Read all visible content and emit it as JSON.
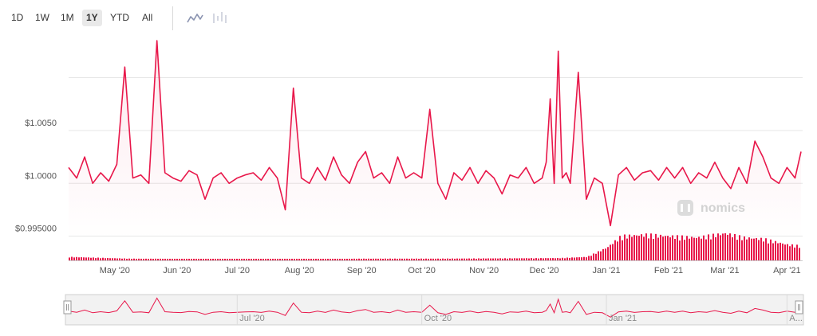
{
  "toolbar": {
    "ranges": [
      "1D",
      "1W",
      "1M",
      "1Y",
      "YTD",
      "All"
    ],
    "active_range": "1Y",
    "chart_types": [
      "line-chart-icon",
      "candlestick-icon"
    ]
  },
  "watermark": "nomics",
  "colors": {
    "line": "#e8174a",
    "fill": "#fde7ec",
    "grid": "#e6e6e6",
    "axis_text": "#555555",
    "navigator_bg": "#f2f2f2"
  },
  "navigator": {
    "labels": [
      "Jul '20",
      "Oct '20",
      "Jan '21",
      "A..."
    ]
  },
  "chart_data": {
    "type": "line",
    "title": "",
    "xlabel": "",
    "ylabel": "",
    "yticks": [
      {
        "value": 0.995,
        "label": "$0.995000"
      },
      {
        "value": 1.0,
        "label": "$1.0000"
      },
      {
        "value": 1.005,
        "label": "$1.0050"
      }
    ],
    "xticks": [
      {
        "x": "2020-05-01",
        "label": "May '20"
      },
      {
        "x": "2020-06-01",
        "label": "Jun '20"
      },
      {
        "x": "2020-07-01",
        "label": "Jul '20"
      },
      {
        "x": "2020-08-01",
        "label": "Aug '20"
      },
      {
        "x": "2020-09-01",
        "label": "Sep '20"
      },
      {
        "x": "2020-10-01",
        "label": "Oct '20"
      },
      {
        "x": "2020-11-01",
        "label": "Nov '20"
      },
      {
        "x": "2020-12-01",
        "label": "Dec '20"
      },
      {
        "x": "2021-01-01",
        "label": "Jan '21"
      },
      {
        "x": "2021-02-01",
        "label": "Feb '21"
      },
      {
        "x": "2021-03-01",
        "label": "Mar '21"
      },
      {
        "x": "2021-04-01",
        "label": "Apr '21"
      }
    ],
    "xlim": [
      "2020-04-08",
      "2021-04-08"
    ],
    "ylim": [
      0.99475,
      1.0138
    ],
    "series": [
      {
        "x": [
          "2020-04-08",
          "2020-04-12",
          "2020-04-16",
          "2020-04-20",
          "2020-04-24",
          "2020-04-28",
          "2020-05-02",
          "2020-05-06",
          "2020-05-10",
          "2020-05-14",
          "2020-05-18",
          "2020-05-22",
          "2020-05-26",
          "2020-05-30",
          "2020-06-03",
          "2020-06-07",
          "2020-06-11",
          "2020-06-15",
          "2020-06-19",
          "2020-06-23",
          "2020-06-27",
          "2020-07-01",
          "2020-07-05",
          "2020-07-09",
          "2020-07-13",
          "2020-07-17",
          "2020-07-21",
          "2020-07-25",
          "2020-07-29",
          "2020-08-02",
          "2020-08-06",
          "2020-08-10",
          "2020-08-14",
          "2020-08-18",
          "2020-08-22",
          "2020-08-26",
          "2020-08-30",
          "2020-09-03",
          "2020-09-07",
          "2020-09-11",
          "2020-09-15",
          "2020-09-19",
          "2020-09-23",
          "2020-09-27",
          "2020-10-01",
          "2020-10-05",
          "2020-10-09",
          "2020-10-13",
          "2020-10-17",
          "2020-10-21",
          "2020-10-25",
          "2020-10-29",
          "2020-11-02",
          "2020-11-06",
          "2020-11-10",
          "2020-11-14",
          "2020-11-18",
          "2020-11-22",
          "2020-11-26",
          "2020-11-30",
          "2020-12-02",
          "2020-12-04",
          "2020-12-06",
          "2020-12-08",
          "2020-12-10",
          "2020-12-12",
          "2020-12-14",
          "2020-12-18",
          "2020-12-22",
          "2020-12-26",
          "2020-12-30",
          "2021-01-03",
          "2021-01-07",
          "2021-01-11",
          "2021-01-15",
          "2021-01-19",
          "2021-01-23",
          "2021-01-27",
          "2021-01-31",
          "2021-02-04",
          "2021-02-08",
          "2021-02-12",
          "2021-02-16",
          "2021-02-20",
          "2021-02-24",
          "2021-02-28",
          "2021-03-04",
          "2021-03-08",
          "2021-03-12",
          "2021-03-16",
          "2021-03-20",
          "2021-03-24",
          "2021-03-28",
          "2021-04-01",
          "2021-04-05",
          "2021-04-08"
        ],
        "values": [
          1.0015,
          1.0005,
          1.0025,
          1.0,
          1.001,
          1.0002,
          1.0018,
          1.011,
          1.0005,
          1.0008,
          1.0,
          1.0135,
          1.001,
          1.0005,
          1.0002,
          1.0012,
          1.0008,
          0.9985,
          1.0005,
          1.001,
          1.0,
          1.0005,
          1.0008,
          1.001,
          1.0003,
          1.0015,
          1.0005,
          0.9975,
          1.009,
          1.0005,
          1.0,
          1.0015,
          1.0003,
          1.0025,
          1.0008,
          1.0,
          1.002,
          1.003,
          1.0005,
          1.001,
          1.0,
          1.0025,
          1.0005,
          1.001,
          1.0005,
          1.007,
          1.0,
          0.9985,
          1.001,
          1.0003,
          1.0015,
          1.0,
          1.0012,
          1.0005,
          0.999,
          1.0008,
          1.0005,
          1.0015,
          1.0,
          1.0005,
          1.002,
          1.008,
          1.0,
          1.0125,
          1.0005,
          1.001,
          1.0,
          1.0105,
          0.9985,
          1.0005,
          1.0,
          0.996,
          1.0008,
          1.0015,
          1.0003,
          1.001,
          1.0012,
          1.0003,
          1.0015,
          1.0005,
          1.0015,
          1.0,
          1.001,
          1.0005,
          1.002,
          1.0005,
          0.9995,
          1.0015,
          1.0,
          1.004,
          1.0025,
          1.0005,
          1.0,
          1.0015,
          1.0005,
          1.003
        ]
      }
    ],
    "volume": {
      "x": [
        "2020-04-08",
        "2020-05-08",
        "2020-06-08",
        "2020-07-08",
        "2020-08-08",
        "2020-09-08",
        "2020-10-08",
        "2020-11-08",
        "2020-12-08",
        "2020-12-22",
        "2021-01-01",
        "2021-01-08",
        "2021-01-20",
        "2021-02-01",
        "2021-02-15",
        "2021-03-01",
        "2021-03-10",
        "2021-03-20",
        "2021-04-01",
        "2021-04-08"
      ],
      "values": [
        0.12,
        0.06,
        0.05,
        0.05,
        0.05,
        0.06,
        0.06,
        0.07,
        0.08,
        0.12,
        0.45,
        0.85,
        0.9,
        0.85,
        0.8,
        0.95,
        0.8,
        0.75,
        0.55,
        0.5
      ]
    }
  }
}
